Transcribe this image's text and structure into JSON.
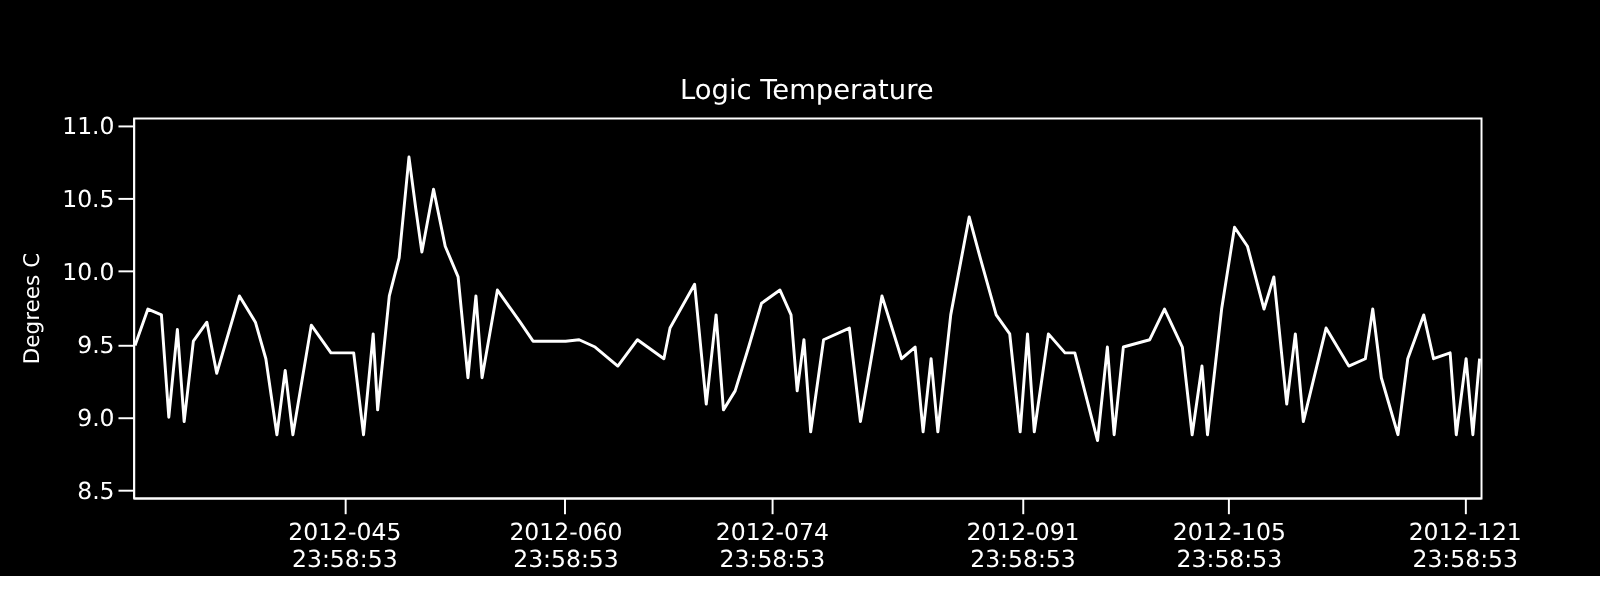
{
  "chart_data": {
    "type": "line",
    "title": "Logic Temperature",
    "ylabel": "Degrees C",
    "x": [
      "2012-01-31T20:00",
      "2012-02-01T17:00",
      "2012-02-02T15:00",
      "2012-02-03T03:00",
      "2012-02-03T17:00",
      "2012-02-04T04:00",
      "2012-02-04T19:00",
      "2012-02-05T17:00",
      "2012-02-06T09:00",
      "2012-02-07T22:00",
      "2012-02-09T00:00",
      "2012-02-09T17:00",
      "2012-02-10T11:00",
      "2012-02-11T00:30",
      "2012-02-11T13:00",
      "2012-02-12T19:00",
      "2012-02-14T03:00",
      "2012-02-15T16:00",
      "2012-02-16T08:00",
      "2012-02-16T23:45",
      "2012-02-17T07:00",
      "2012-02-18T02:00",
      "2012-02-18T18:00",
      "2012-02-19T10:00",
      "2012-02-19T21:00",
      "2012-02-20T07:00",
      "2012-02-21T02:00",
      "2012-02-21T21:00",
      "2012-02-22T18:00",
      "2012-02-23T10:00",
      "2012-02-23T23:00",
      "2012-02-24T09:00",
      "2012-02-25T10:00",
      "2012-02-26T23:00",
      "2012-02-27T20:00",
      "2012-03-01T01:00",
      "2012-03-01T23:00",
      "2012-03-03T01:00",
      "2012-03-04T14:00",
      "2012-03-05T22:00",
      "2012-03-07T17:00",
      "2012-03-08T03:00",
      "2012-03-09T19:00",
      "2012-03-10T14:00",
      "2012-03-11T06:00",
      "2012-03-11T18:00",
      "2012-03-12T13:00",
      "2012-03-13T11:00",
      "2012-03-14T08:00",
      "2012-03-15T14:00",
      "2012-03-16T08:00",
      "2012-03-16T18:00",
      "2012-03-17T05:00",
      "2012-03-17T16:00",
      "2012-03-18T13:00",
      "2012-03-20T07:00",
      "2012-03-21T01:00",
      "2012-03-22T12:00",
      "2012-03-23T20:00",
      "2012-03-24T18:00",
      "2012-03-25T07:00",
      "2012-03-25T20:00",
      "2012-03-26T07:00",
      "2012-03-27T04:00",
      "2012-03-28T10:00",
      "2012-03-29T04:00",
      "2012-03-30T06:00",
      "2012-03-31T04:00",
      "2012-03-31T21:00",
      "2012-04-01T09:00",
      "2012-04-01T20:00",
      "2012-04-02T19:00",
      "2012-04-03T22:00",
      "2012-04-04T14:00",
      "2012-04-06T03:00",
      "2012-04-06T19:00",
      "2012-04-07T06:00",
      "2012-04-07T21:00",
      "2012-04-09T16:00",
      "2012-04-10T16:00",
      "2012-04-11T21:00",
      "2012-04-12T13:00",
      "2012-04-13T05:00",
      "2012-04-13T14:00",
      "2012-04-14T13:00",
      "2012-04-15T10:00",
      "2012-04-16T07:00",
      "2012-04-17T10:00",
      "2012-04-18T02:00",
      "2012-04-18T23:00",
      "2012-04-19T13:00",
      "2012-04-20T02:00",
      "2012-04-21T15:00",
      "2012-04-23T04:00",
      "2012-04-24T07:00",
      "2012-04-24T19:00",
      "2012-04-25T09:00",
      "2012-04-26T12:00",
      "2012-04-27T04:00",
      "2012-04-28T06:00",
      "2012-04-28T22:00",
      "2012-04-30T01:00",
      "2012-04-30T11:00",
      "2012-05-01T03:00",
      "2012-05-01T14:00",
      "2012-05-02T01:00"
    ],
    "series": [
      {
        "color": "#ffffff",
        "values": [
          9.49,
          9.74,
          9.7,
          9.0,
          9.6,
          8.97,
          9.52,
          9.65,
          9.3,
          9.83,
          9.65,
          9.4,
          8.88,
          9.32,
          8.88,
          9.63,
          9.44,
          9.44,
          8.88,
          9.57,
          9.05,
          9.83,
          10.09,
          10.78,
          10.43,
          10.13,
          10.56,
          10.17,
          9.96,
          9.27,
          9.83,
          9.27,
          9.87,
          9.65,
          9.52,
          9.52,
          9.53,
          9.48,
          9.35,
          9.53,
          9.4,
          9.61,
          9.91,
          9.09,
          9.7,
          9.05,
          9.18,
          9.48,
          9.78,
          9.87,
          9.7,
          9.18,
          9.53,
          8.9,
          9.53,
          9.61,
          8.97,
          9.83,
          9.4,
          9.48,
          8.9,
          9.4,
          8.9,
          9.7,
          10.37,
          10.09,
          9.7,
          9.57,
          8.9,
          9.57,
          8.9,
          9.57,
          9.44,
          9.44,
          8.84,
          9.48,
          8.88,
          9.48,
          9.53,
          9.74,
          9.48,
          8.88,
          9.35,
          8.88,
          9.74,
          10.3,
          10.17,
          9.74,
          9.96,
          9.09,
          9.57,
          8.97,
          9.61,
          9.35,
          9.4,
          9.74,
          9.27,
          8.88,
          9.4,
          9.7,
          9.4,
          9.44,
          8.88,
          9.4,
          8.88,
          9.4
        ]
      }
    ],
    "xlim": [
      "2012-01-31T17:00",
      "2012-05-02T02:30"
    ],
    "xticks": [
      {
        "value": "2012-02-14T23:58:53",
        "label": "2012-045\n23:58:53"
      },
      {
        "value": "2012-02-29T23:58:53",
        "label": "2012-060\n23:58:53"
      },
      {
        "value": "2012-03-14T23:58:53",
        "label": "2012-074\n23:58:53"
      },
      {
        "value": "2012-03-31T23:58:53",
        "label": "2012-091\n23:58:53"
      },
      {
        "value": "2012-04-14T23:58:53",
        "label": "2012-105\n23:58:53"
      },
      {
        "value": "2012-04-30T23:58:53",
        "label": "2012-121\n23:58:53"
      }
    ],
    "ylim": [
      8.45,
      11.05
    ],
    "yticks": [
      {
        "value": 8.5,
        "label": "8.5"
      },
      {
        "value": 9.0,
        "label": "9.0"
      },
      {
        "value": 9.5,
        "label": "9.5"
      },
      {
        "value": 10.0,
        "label": "10.0"
      },
      {
        "value": 10.5,
        "label": "10.5"
      },
      {
        "value": 11.0,
        "label": "11.0"
      }
    ],
    "grid": false,
    "legend": false
  }
}
